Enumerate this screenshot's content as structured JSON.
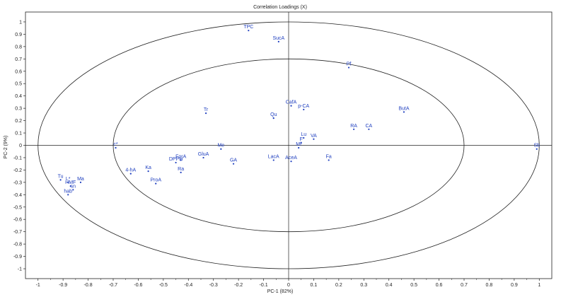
{
  "chart_data": {
    "type": "scatter",
    "title": "Correlation Loadings (X)",
    "xlabel": "PC-1 (82%)",
    "ylabel": "PC-2 (9%)",
    "xlim": [
      -1.05,
      1.05
    ],
    "ylim": [
      -1.08,
      1.08
    ],
    "xticks": [
      -1,
      -0.9,
      -0.8,
      -0.7,
      -0.6,
      -0.5,
      -0.4,
      -0.3,
      -0.2,
      -0.1,
      0,
      0.1,
      0.2,
      0.3,
      0.4,
      0.5,
      0.6,
      0.7,
      0.8,
      0.9,
      1
    ],
    "yticks": [
      1,
      0.9,
      0.8,
      0.7,
      0.6,
      0.5,
      0.4,
      0.3,
      0.2,
      0.1,
      0,
      -0.1,
      -0.2,
      -0.3,
      -0.4,
      -0.5,
      -0.6,
      -0.7,
      -0.8,
      -0.9,
      -1
    ],
    "xtick_labels": [
      "-1",
      "-0.9",
      "-0.8",
      "-0.7",
      "-0.6",
      "-0.5",
      "-0.4",
      "-0.3",
      "-0.2",
      "-0.1",
      "0",
      "0.1",
      "0.2",
      "0.3",
      "0.4",
      "0.5",
      "0.6",
      "0.7",
      "0.8",
      "0.9",
      "1"
    ],
    "ytick_labels": [
      "1",
      "0.9",
      "0.8",
      "0.7",
      "0.6",
      "0.5",
      "0.4",
      "0.3",
      "0.2",
      "0.1",
      "0",
      "-0.1",
      "-0.2",
      "-0.3",
      "-0.4",
      "-0.5",
      "-0.6",
      "-0.7",
      "-0.8",
      "-0.9",
      "-1"
    ],
    "circles": [
      1.0,
      0.7
    ],
    "reference_lines": {
      "x": 0,
      "y": 0
    },
    "grid": false,
    "legend": "none",
    "colors": {
      "points": "#1f3fbf",
      "axes": "#222222",
      "circles": "#222222"
    },
    "points": [
      {
        "label": "TPC",
        "x": -0.16,
        "y": 0.93
      },
      {
        "label": "SucA",
        "x": -0.04,
        "y": 0.84
      },
      {
        "label": "Pf",
        "x": 0.24,
        "y": 0.63
      },
      {
        "label": "CafA",
        "x": 0.01,
        "y": 0.32
      },
      {
        "label": "p-CA",
        "x": 0.06,
        "y": 0.29
      },
      {
        "label": "Tr",
        "x": -0.33,
        "y": 0.26
      },
      {
        "label": "Qu",
        "x": -0.06,
        "y": 0.22
      },
      {
        "label": "ButA",
        "x": 0.46,
        "y": 0.27
      },
      {
        "label": "RA",
        "x": 0.26,
        "y": 0.13
      },
      {
        "label": "CA",
        "x": 0.32,
        "y": 0.13
      },
      {
        "label": "Lu",
        "x": 0.06,
        "y": 0.06
      },
      {
        "label": "VA",
        "x": 0.1,
        "y": 0.05
      },
      {
        "label": "F",
        "x": 0.05,
        "y": 0.02
      },
      {
        "label": "Mf",
        "x": 0.04,
        "y": -0.02
      },
      {
        "label": "Fa",
        "x": 0.16,
        "y": -0.12
      },
      {
        "label": "Sb",
        "x": 0.99,
        "y": -0.03
      },
      {
        "label": "c*",
        "x": -0.69,
        "y": -0.02
      },
      {
        "label": "Me",
        "x": -0.27,
        "y": -0.03
      },
      {
        "label": "GluA",
        "x": -0.34,
        "y": -0.1
      },
      {
        "label": "ForA",
        "x": -0.43,
        "y": -0.12
      },
      {
        "label": "DPPH",
        "x": -0.45,
        "y": -0.14
      },
      {
        "label": "GA",
        "x": -0.22,
        "y": -0.15
      },
      {
        "label": "LacA",
        "x": -0.06,
        "y": -0.12
      },
      {
        "label": "AceA",
        "x": 0.01,
        "y": -0.13
      },
      {
        "label": "Ka",
        "x": -0.56,
        "y": -0.21
      },
      {
        "label": "Ra",
        "x": -0.43,
        "y": -0.22
      },
      {
        "label": "4-hA",
        "x": -0.63,
        "y": -0.23
      },
      {
        "label": "ProA",
        "x": -0.53,
        "y": -0.31
      },
      {
        "label": "Tu",
        "x": -0.91,
        "y": -0.28
      },
      {
        "label": "L*",
        "x": -0.88,
        "y": -0.3
      },
      {
        "label": "HMF",
        "x": -0.87,
        "y": -0.33
      },
      {
        "label": "Ma",
        "x": -0.83,
        "y": -0.3
      },
      {
        "label": "sn",
        "x": -0.86,
        "y": -0.36
      },
      {
        "label": "hab",
        "x": -0.88,
        "y": -0.4
      }
    ]
  }
}
